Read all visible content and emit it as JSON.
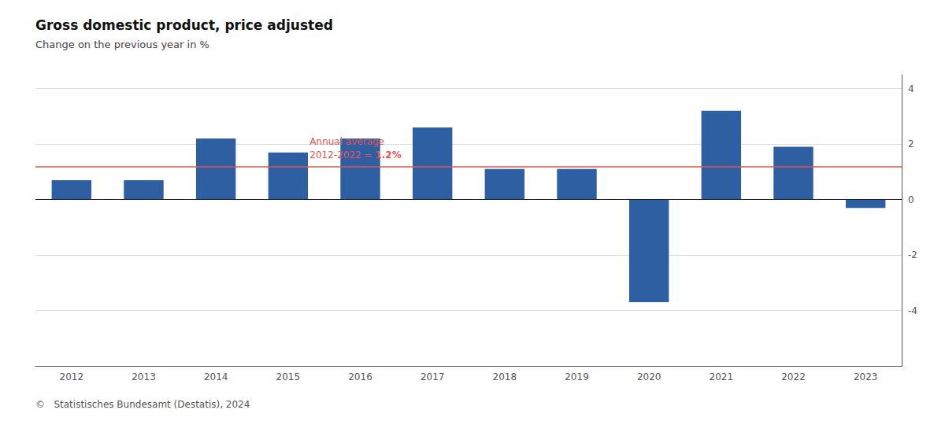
{
  "chart_data": {
    "type": "bar",
    "title": "Gross domestic product, price adjusted",
    "subtitle": "Change on the previous year in %",
    "footer": "©   Statistisches Bundesamt (Destatis), 2024",
    "categories": [
      2012,
      2013,
      2014,
      2015,
      2016,
      2017,
      2018,
      2019,
      2020,
      2021,
      2022,
      2023
    ],
    "values": [
      0.7,
      0.7,
      2.2,
      1.7,
      2.2,
      2.6,
      1.1,
      1.1,
      -3.7,
      3.2,
      1.9,
      -0.3
    ],
    "color": "#2E5FA3",
    "ylim": [
      -6,
      4.5
    ],
    "yticks": [
      -4,
      -2,
      0,
      2,
      4
    ],
    "grid": true,
    "annual_average": {
      "value": 1.2,
      "label": "Annual average",
      "label_line2": "2012-2022 = ",
      "label_bold": "1.2%",
      "color": "#E8534A"
    }
  }
}
